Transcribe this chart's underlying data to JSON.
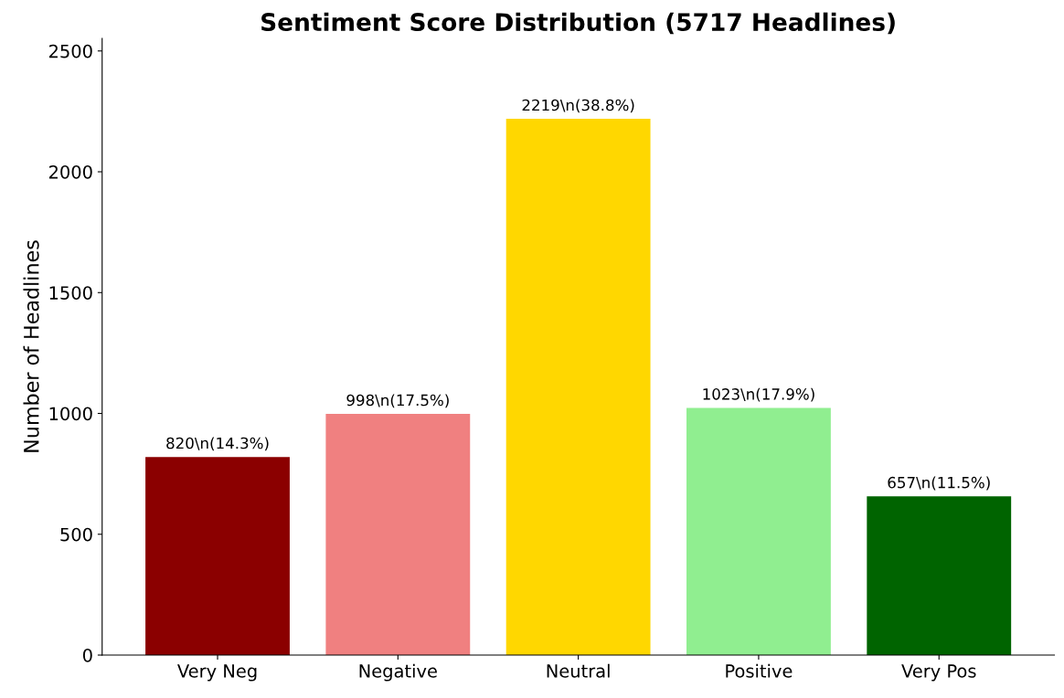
{
  "chart_data": {
    "type": "bar",
    "title": "Sentiment Score Distribution (5717 Headlines)",
    "ylabel": "Number of Headlines",
    "categories": [
      "Very Neg",
      "Negative",
      "Neutral",
      "Positive",
      "Very Pos"
    ],
    "values": [
      820,
      998,
      2219,
      1023,
      657
    ],
    "colors": [
      "#8b0000",
      "#f08080",
      "#ffd700",
      "#90ee90",
      "#006400"
    ],
    "value_labels": [
      "820\\n(14.3%)",
      "998\\n(17.5%)",
      "2219\\n(38.8%)",
      "1023\\n(17.9%)",
      "657\\n(11.5%)"
    ],
    "ylim": [
      0,
      2552
    ],
    "yticks": [
      0,
      500,
      1000,
      1500,
      2000,
      2500
    ],
    "grid": false,
    "legend": false
  }
}
